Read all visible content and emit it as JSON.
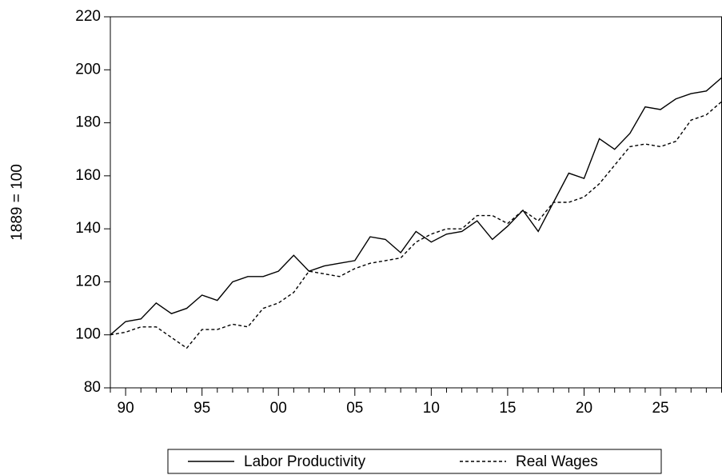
{
  "chart_data": {
    "type": "line",
    "y_label": "1889 = 100",
    "categories": [
      null,
      "90",
      null,
      null,
      null,
      null,
      "95",
      null,
      null,
      null,
      null,
      "00",
      null,
      null,
      null,
      null,
      "05",
      null,
      null,
      null,
      null,
      "10",
      null,
      null,
      null,
      null,
      "15",
      null,
      null,
      null,
      null,
      "20",
      null,
      null,
      null,
      null,
      "25",
      null,
      null,
      null,
      null
    ],
    "series": [
      {
        "name": "Labor Productivity",
        "color": "#000000",
        "dash": false,
        "values": [
          100,
          105,
          106,
          112,
          108,
          110,
          115,
          113,
          120,
          122,
          122,
          124,
          130,
          124,
          126,
          127,
          128,
          137,
          136,
          131,
          139,
          135,
          138,
          139,
          143,
          136,
          141,
          147,
          139,
          150,
          161,
          159,
          174,
          170,
          176,
          186,
          185,
          189,
          191,
          192,
          197
        ]
      },
      {
        "name": "Real Wages",
        "color": "#000000",
        "dash": true,
        "values": [
          100,
          101,
          103,
          103,
          99,
          95,
          102,
          102,
          104,
          103,
          110,
          112,
          116,
          124,
          123,
          122,
          125,
          127,
          128,
          129,
          135,
          138,
          140,
          140,
          145,
          145,
          142,
          147,
          143,
          150,
          150,
          152,
          157,
          164,
          171,
          172,
          171,
          173,
          181,
          183,
          188
        ]
      }
    ],
    "ylim": [
      80,
      220
    ],
    "yticks": [
      80,
      100,
      120,
      140,
      160,
      180,
      200,
      220
    ],
    "grid": false,
    "legend_position": "bottom"
  }
}
